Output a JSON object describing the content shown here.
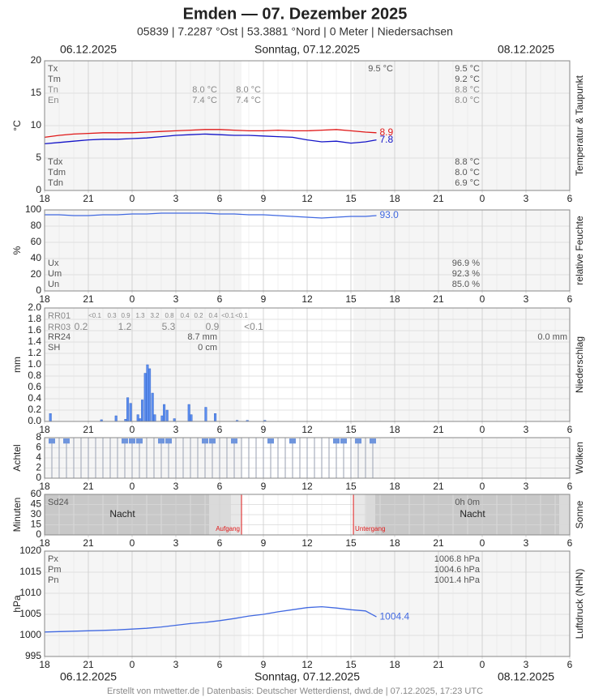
{
  "title": "Emden  —  07. Dezember 2025",
  "subtitle": "05839  |  7.2287 °Ost  |  53.3881 °Nord  |  0 Meter  |  Niedersachsen",
  "dates": {
    "left": "06.12.2025",
    "center": "Sonntag, 07.12.2025",
    "right": "08.12.2025"
  },
  "footer": "Erstellt von mtwetter.de | Datenbasis: Deutscher Wetterdienst, dwd.de | 07.12.2025, 17:23 UTC",
  "chart_data": [
    {
      "type": "line",
      "ylabel": "°C",
      "side_label": "Temperatur & Taupunkt",
      "xlim": [
        -6,
        30
      ],
      "xticks": [
        {
          "value": -6,
          "label": "18"
        },
        {
          "value": -3,
          "label": "21"
        },
        0,
        3,
        6,
        9,
        12,
        15,
        18,
        21,
        {
          "value": 24,
          "label": "0"
        },
        {
          "value": 27,
          "label": "3"
        },
        {
          "value": 30,
          "label": "6"
        }
      ],
      "ylim": [
        0,
        20
      ],
      "yticks": [
        0,
        5,
        10,
        15,
        20
      ],
      "grid": true,
      "end_label": true,
      "x": [
        -6,
        -5,
        -4,
        -3,
        -2,
        -1,
        0,
        1,
        2,
        3,
        4,
        5,
        6,
        7,
        8,
        9,
        10,
        11,
        12,
        13,
        14,
        15,
        16,
        16.75
      ],
      "series": [
        {
          "name": "Temperatur",
          "color": "#e01818",
          "values": [
            8.2,
            8.5,
            8.7,
            8.8,
            8.9,
            8.9,
            8.9,
            9.0,
            9.1,
            9.2,
            9.3,
            9.4,
            9.4,
            9.3,
            9.2,
            9.2,
            9.3,
            9.2,
            9.2,
            9.3,
            9.4,
            9.2,
            9.0,
            8.9
          ]
        },
        {
          "name": "Taupunkt",
          "color": "#1414c8",
          "values": [
            7.2,
            7.4,
            7.6,
            7.8,
            7.9,
            7.9,
            8.0,
            8.1,
            8.3,
            8.5,
            8.6,
            8.7,
            8.6,
            8.5,
            8.5,
            8.4,
            8.3,
            8.2,
            7.8,
            7.5,
            7.6,
            7.3,
            7.5,
            7.8
          ]
        }
      ],
      "stats": [
        {
          "label": "Tx",
          "values": [
            "9.5 °C",
            "9.5 °C"
          ]
        },
        {
          "label": "Tm",
          "values": [
            "9.2 °C"
          ]
        },
        {
          "label": "Tn",
          "values": [
            "8.0 °C",
            "8.0 °C",
            "8.8 °C"
          ]
        },
        {
          "label": "En",
          "values": [
            "7.4 °C",
            "7.4 °C",
            "8.0 °C"
          ]
        },
        {
          "label": "Tdx",
          "values": [
            "8.8 °C"
          ]
        },
        {
          "label": "Tdm",
          "values": [
            "8.0 °C"
          ]
        },
        {
          "label": "Tdn",
          "values": [
            "6.9 °C"
          ]
        }
      ]
    },
    {
      "type": "line",
      "ylabel": "%",
      "side_label": "relative Feuchte",
      "xlim": [
        -6,
        30
      ],
      "xticks": [
        {
          "value": -6,
          "label": "18"
        },
        {
          "value": -3,
          "label": "21"
        },
        0,
        3,
        6,
        9,
        12,
        15,
        18,
        21,
        {
          "value": 24,
          "label": "0"
        },
        {
          "value": 27,
          "label": "3"
        },
        {
          "value": 30,
          "label": "6"
        }
      ],
      "ylim": [
        0,
        100
      ],
      "yticks": [
        0,
        20,
        40,
        60,
        80,
        100
      ],
      "grid": true,
      "end_label": true,
      "x": [
        -6,
        -5,
        -4,
        -3,
        -2,
        -1,
        0,
        1,
        2,
        3,
        4,
        5,
        6,
        7,
        8,
        9,
        10,
        11,
        12,
        13,
        14,
        15,
        16,
        16.75
      ],
      "series": [
        {
          "name": "Feuchte",
          "color": "#4169e1",
          "values": [
            94,
            94,
            93,
            93,
            94,
            94,
            95,
            95,
            96,
            96,
            96,
            96,
            95,
            95,
            94,
            94,
            93,
            92,
            91,
            90,
            91,
            92,
            92,
            93
          ],
          "value_labels": [
            null,
            null,
            null,
            null,
            null,
            null,
            null,
            null,
            null,
            null,
            null,
            null,
            null,
            null,
            null,
            null,
            null,
            null,
            null,
            null,
            null,
            null,
            null,
            "93.0"
          ]
        }
      ],
      "stats": [
        {
          "label": "Ux",
          "values": [
            "96.9 %"
          ]
        },
        {
          "label": "Um",
          "values": [
            "92.3 %"
          ]
        },
        {
          "label": "Un",
          "values": [
            "85.0 %"
          ]
        }
      ]
    },
    {
      "type": "bar",
      "ylabel": "mm",
      "side_label": "Niederschlag",
      "xlim": [
        -6,
        30
      ],
      "xticks": [
        {
          "value": -6,
          "label": "18"
        },
        {
          "value": -3,
          "label": "21"
        },
        0,
        3,
        6,
        9,
        12,
        15,
        18,
        21,
        {
          "value": 24,
          "label": "0"
        },
        {
          "value": 27,
          "label": "3"
        },
        {
          "value": 30,
          "label": "6"
        }
      ],
      "ylim": [
        0,
        2
      ],
      "yticks": [
        {
          "value": 0,
          "label": "0.0"
        },
        0.2,
        0.4,
        0.6,
        0.8,
        {
          "value": 1,
          "label": "1.0"
        },
        1.2,
        1.4,
        1.6,
        1.8,
        {
          "value": 2,
          "label": "2.0"
        }
      ],
      "grid": true,
      "color": "#5b8def",
      "x": [
        -5.6,
        -2.1,
        -1.1,
        -0.45,
        -0.3,
        -0.1,
        0.4,
        0.55,
        0.7,
        0.9,
        1.05,
        1.2,
        1.4,
        1.55,
        2.05,
        2.2,
        2.4,
        2.9,
        3.9,
        4.05,
        5.05,
        5.7,
        7.2,
        7.9,
        9.1
      ],
      "values": [
        0.14,
        0.03,
        0.1,
        0.04,
        0.42,
        0.32,
        0.12,
        0.05,
        0.38,
        0.85,
        1.0,
        0.93,
        0.5,
        0.12,
        0.1,
        0.3,
        0.2,
        0.05,
        0.3,
        0.12,
        0.25,
        0.14,
        0.02,
        0.02,
        0.02
      ],
      "stats": [
        {
          "label": "RR01",
          "values": [
            "<0.1",
            "0.3",
            "0.9",
            "1.3",
            "3.2",
            "0.8",
            "0.4",
            "0.2",
            "0.4",
            "<0.1",
            "<0.1"
          ]
        },
        {
          "label": "RR03",
          "values": [
            "0.2",
            "1.2",
            "5.3",
            "0.9",
            "<0.1"
          ]
        },
        {
          "label": "RR24",
          "values": [
            "8.7 mm",
            "0.0 mm"
          ]
        },
        {
          "label": "SH",
          "values": [
            "0 cm"
          ]
        }
      ]
    },
    {
      "type": "cloud",
      "ylabel": "Achtel",
      "side_label": "Wolken",
      "xlim": [
        -6,
        30
      ],
      "xticks": [
        {
          "value": -6,
          "label": "18"
        },
        {
          "value": -3,
          "label": "21"
        },
        0,
        3,
        6,
        9,
        12,
        15,
        18,
        21,
        {
          "value": 24,
          "label": "0"
        },
        {
          "value": 27,
          "label": "3"
        },
        {
          "value": 30,
          "label": "6"
        }
      ],
      "ylim": [
        0,
        8
      ],
      "yticks": [
        0,
        2,
        4,
        6,
        8
      ],
      "grid": true,
      "color": "#a8afbf",
      "sky_color": "#6f95dd",
      "x": [
        -6,
        -5.5,
        -5,
        -4.5,
        -4,
        -3.5,
        -3,
        -2.5,
        -2,
        -1.5,
        -1,
        -0.5,
        0,
        0.5,
        1,
        1.5,
        2,
        2.5,
        3,
        3.5,
        4,
        4.5,
        5,
        5.5,
        6,
        6.5,
        7,
        7.5,
        8,
        8.5,
        9,
        9.5,
        10,
        10.5,
        11,
        11.5,
        12,
        12.5,
        13,
        13.5,
        14,
        14.5,
        15,
        15.5,
        16,
        16.5
      ],
      "values": [
        8,
        7,
        8,
        7,
        8,
        8,
        8,
        8,
        8,
        8,
        8,
        7,
        7,
        7,
        8,
        8,
        7,
        7,
        8,
        8,
        8,
        8,
        7,
        7,
        8,
        8,
        7,
        8,
        8,
        8,
        8,
        7,
        8,
        8,
        7,
        8,
        8,
        8,
        8,
        8,
        7,
        7,
        8,
        7,
        8,
        7
      ],
      "stats": []
    },
    {
      "type": "sun",
      "ylabel": "Minuten",
      "side_label": "Sonne",
      "xlim": [
        -6,
        30
      ],
      "xticks": [
        {
          "value": -6,
          "label": "18"
        },
        {
          "value": -3,
          "label": "21"
        },
        0,
        3,
        6,
        9,
        12,
        15,
        18,
        21,
        {
          "value": 24,
          "label": "0"
        },
        {
          "value": 27,
          "label": "3"
        },
        {
          "value": 30,
          "label": "6"
        }
      ],
      "ylim": [
        0,
        60
      ],
      "yticks": [
        0,
        15,
        30,
        45,
        60
      ],
      "grid": true,
      "night_label": "Nacht",
      "events": [
        {
          "label": "Aufgang",
          "x": 7.5
        },
        {
          "label": "Untergang",
          "x": 15.17
        }
      ],
      "event_color": "#e01818",
      "stats": [
        {
          "label": "Sd24",
          "values": [
            "0h 0m"
          ]
        }
      ]
    },
    {
      "type": "line",
      "ylabel": "hPa",
      "side_label": "Luftdruck (NHN)",
      "xlim": [
        -6,
        30
      ],
      "xticks": [
        {
          "value": -6,
          "label": "18"
        },
        {
          "value": -3,
          "label": "21"
        },
        0,
        3,
        6,
        9,
        12,
        15,
        18,
        21,
        {
          "value": 24,
          "label": "0"
        },
        {
          "value": 27,
          "label": "3"
        },
        {
          "value": 30,
          "label": "6"
        }
      ],
      "ylim": [
        995,
        1020
      ],
      "yticks": [
        995,
        1000,
        1005,
        1010,
        1015,
        1020
      ],
      "grid": true,
      "end_label": true,
      "x": [
        -6,
        -5,
        -4,
        -3,
        -2,
        -1,
        0,
        1,
        2,
        3,
        4,
        5,
        6,
        7,
        8,
        9,
        10,
        11,
        12,
        13,
        14,
        15,
        16,
        16.75
      ],
      "series": [
        {
          "name": "Luftdruck",
          "color": "#4169e1",
          "values": [
            1000.8,
            1000.9,
            1001.0,
            1001.1,
            1001.2,
            1001.3,
            1001.5,
            1001.7,
            1002.0,
            1002.4,
            1002.8,
            1003.1,
            1003.5,
            1004.0,
            1004.6,
            1005.0,
            1005.6,
            1006.1,
            1006.6,
            1006.8,
            1006.5,
            1006.1,
            1005.8,
            1004.4
          ]
        }
      ],
      "stats": [
        {
          "label": "Px",
          "values": [
            "1006.8 hPa"
          ]
        },
        {
          "label": "Pm",
          "values": [
            "1004.6 hPa"
          ]
        },
        {
          "label": "Pn",
          "values": [
            "1001.4 hPa"
          ]
        }
      ]
    }
  ]
}
